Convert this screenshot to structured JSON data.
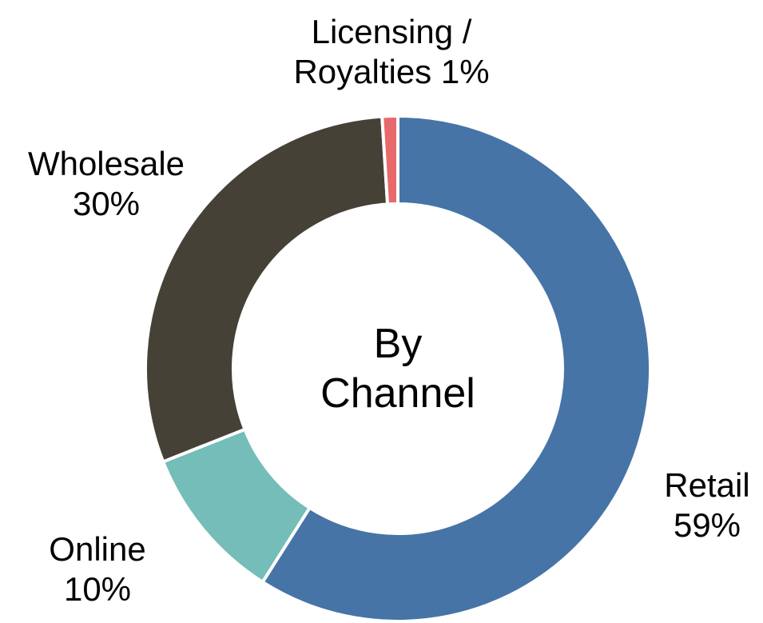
{
  "chart_data": {
    "type": "donut",
    "center_label": "By Channel",
    "categories": [
      "Retail",
      "Online",
      "Wholesale",
      "Licensing / Royalties"
    ],
    "values": [
      59,
      10,
      30,
      1
    ],
    "value_labels": [
      "59%",
      "10%",
      "30%",
      "1%"
    ],
    "colors": [
      "#4674a6",
      "#74bdb9",
      "#464137",
      "#e8696b"
    ]
  }
}
